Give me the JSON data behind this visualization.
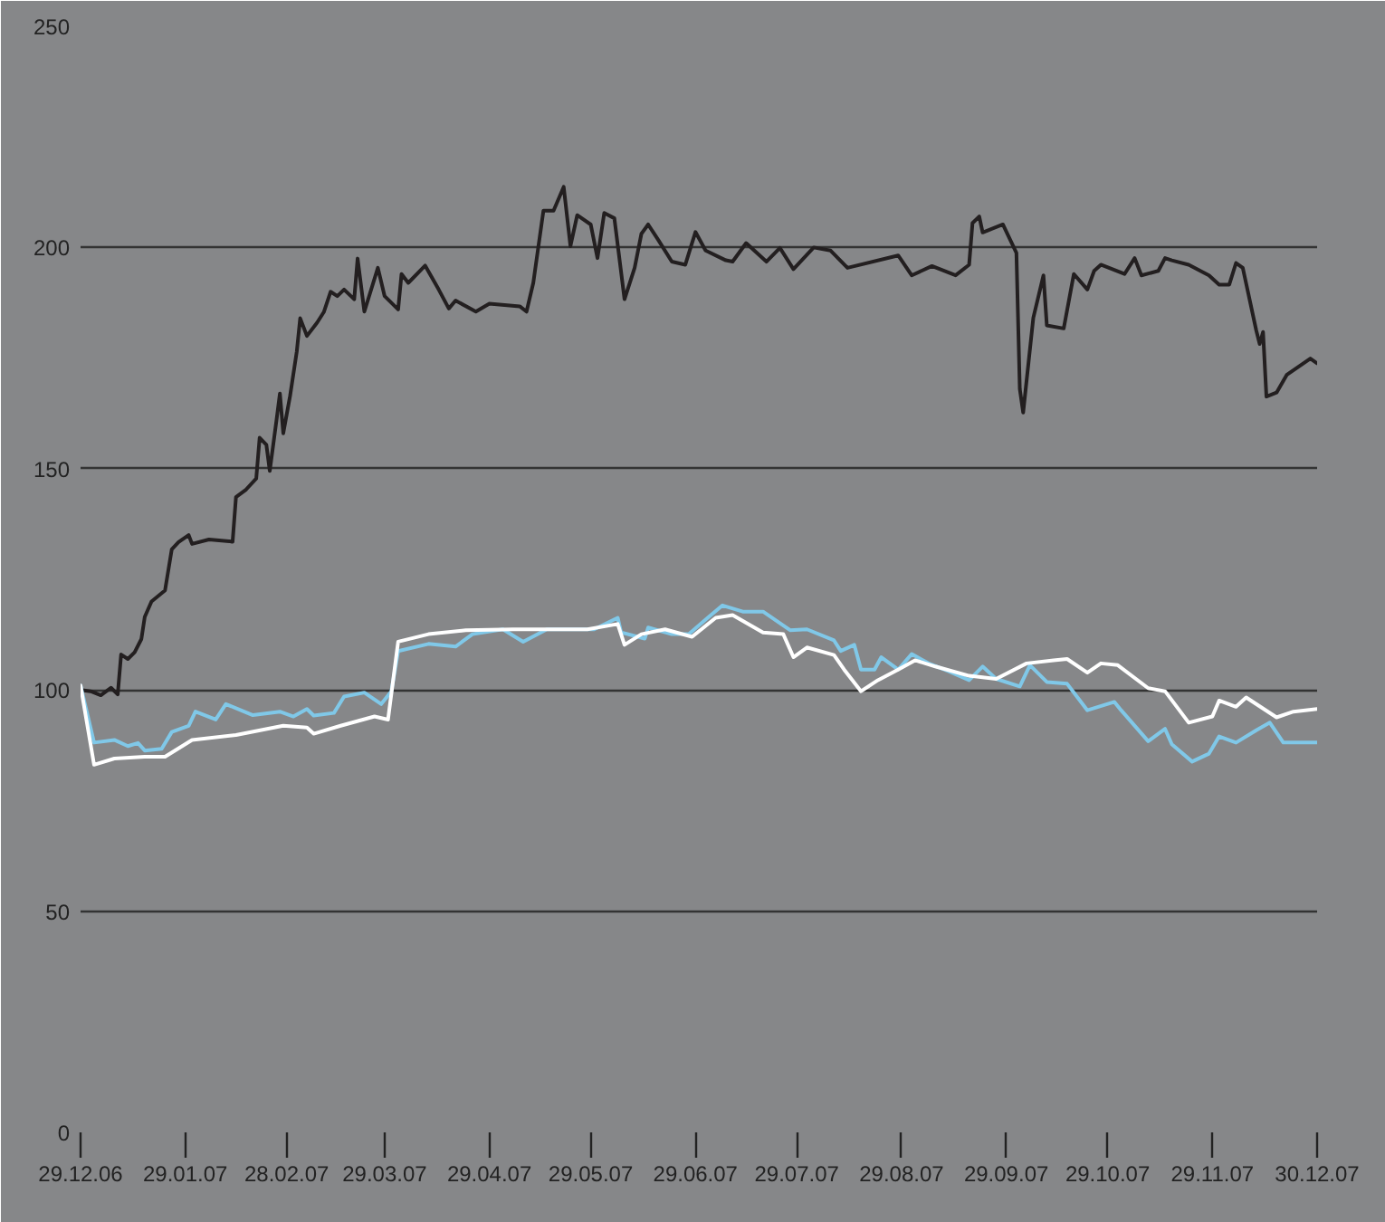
{
  "chart_data": {
    "type": "line",
    "xlim": [
      "2006-12-29",
      "2007-12-30"
    ],
    "ylim": [
      0,
      250
    ],
    "yticks": [
      0,
      50,
      100,
      150,
      200,
      250
    ],
    "xticks": [
      {
        "value": "2006-12-29",
        "label": "29.12.06"
      },
      {
        "value": "2007-01-29",
        "label": "29.01.07"
      },
      {
        "value": "2007-02-28",
        "label": "28.02.07"
      },
      {
        "value": "2007-03-29",
        "label": "29.03.07"
      },
      {
        "value": "2007-04-29",
        "label": "29.04.07"
      },
      {
        "value": "2007-05-29",
        "label": "29.05.07"
      },
      {
        "value": "2007-06-29",
        "label": "29.06.07"
      },
      {
        "value": "2007-07-29",
        "label": "29.07.07"
      },
      {
        "value": "2007-08-29",
        "label": "29.08.07"
      },
      {
        "value": "2007-09-29",
        "label": "29.09.07"
      },
      {
        "value": "2007-10-29",
        "label": "29.10.07"
      },
      {
        "value": "2007-11-29",
        "label": "29.11.07"
      },
      {
        "value": "2007-12-30",
        "label": "30.12.07"
      }
    ],
    "grid": "y",
    "marker": "none",
    "line_style": "solid",
    "series": [
      {
        "color": "#231f20",
        "x": [
          "2006-12-29",
          "2007-01-01",
          "2007-01-04",
          "2007-01-07",
          "2007-01-09",
          "2007-01-10",
          "2007-01-12",
          "2007-01-14",
          "2007-01-16",
          "2007-01-17",
          "2007-01-19",
          "2007-01-23",
          "2007-01-25",
          "2007-01-27",
          "2007-01-30",
          "2007-01-31",
          "2007-02-05",
          "2007-02-12",
          "2007-02-13",
          "2007-02-16",
          "2007-02-19",
          "2007-02-20",
          "2007-02-22",
          "2007-02-23",
          "2007-02-25",
          "2007-02-26",
          "2007-02-27",
          "2007-03-01",
          "2007-03-03",
          "2007-03-04",
          "2007-03-06",
          "2007-03-09",
          "2007-03-11",
          "2007-03-13",
          "2007-03-15",
          "2007-03-17",
          "2007-03-20",
          "2007-03-21",
          "2007-03-23",
          "2007-03-27",
          "2007-03-29",
          "2007-04-02",
          "2007-04-03",
          "2007-04-05",
          "2007-04-10",
          "2007-04-14",
          "2007-04-17",
          "2007-04-19",
          "2007-04-25",
          "2007-04-29",
          "2007-05-08",
          "2007-05-10",
          "2007-05-12",
          "2007-05-15",
          "2007-05-18",
          "2007-05-21",
          "2007-05-23",
          "2007-05-25",
          "2007-05-29",
          "2007-05-31",
          "2007-06-02",
          "2007-06-05",
          "2007-06-08",
          "2007-06-11",
          "2007-06-13",
          "2007-06-15",
          "2007-06-18",
          "2007-06-22",
          "2007-06-26",
          "2007-06-29",
          "2007-07-02",
          "2007-07-08",
          "2007-07-10",
          "2007-07-14",
          "2007-07-20",
          "2007-07-24",
          "2007-07-28",
          "2007-08-03",
          "2007-08-08",
          "2007-08-13",
          "2007-08-28",
          "2007-09-01",
          "2007-09-07",
          "2007-09-14",
          "2007-09-18",
          "2007-09-19",
          "2007-09-21",
          "2007-09-22",
          "2007-09-28",
          "2007-10-02",
          "2007-10-03",
          "2007-10-04",
          "2007-10-07",
          "2007-10-10",
          "2007-10-11",
          "2007-10-16",
          "2007-10-19",
          "2007-10-23",
          "2007-10-25",
          "2007-10-27",
          "2007-11-03",
          "2007-11-06",
          "2007-11-08",
          "2007-11-13",
          "2007-11-15",
          "2007-11-17",
          "2007-11-22",
          "2007-11-28",
          "2007-12-01",
          "2007-12-04",
          "2007-12-06",
          "2007-12-08",
          "2007-12-12",
          "2007-12-13",
          "2007-12-14",
          "2007-12-15",
          "2007-12-18",
          "2007-12-21",
          "2007-12-28",
          "2007-12-30"
        ],
        "values": [
          100,
          99.7,
          98.8,
          100.5,
          99,
          108,
          107,
          108.5,
          111.5,
          116.5,
          120,
          122.5,
          131.8,
          133.4,
          135,
          133,
          134,
          133.5,
          143.6,
          145.3,
          147.8,
          157,
          155.4,
          149.5,
          161,
          167,
          158,
          166.4,
          176.5,
          184,
          180,
          183,
          185.4,
          190,
          189,
          190.5,
          188.3,
          197.5,
          185.5,
          195.4,
          189,
          186,
          194,
          192,
          195.9,
          190.5,
          186.2,
          188,
          185.5,
          187.3,
          186.7,
          185.5,
          192,
          208.3,
          208.3,
          213.7,
          200.3,
          207.3,
          205.2,
          197.6,
          207.8,
          206.6,
          188.3,
          195.4,
          203.1,
          205.2,
          201.7,
          196.8,
          196.1,
          203.5,
          199.3,
          197.1,
          196.8,
          201,
          196.8,
          199.9,
          195.1,
          200,
          199.3,
          195.4,
          198.2,
          193.7,
          195.8,
          193.7,
          196.1,
          205.5,
          207,
          203.4,
          205.2,
          198.8,
          168,
          162.7,
          184.1,
          193.7,
          182.4,
          181.7,
          194,
          190.5,
          194.7,
          196.1,
          194,
          197.6,
          193.7,
          194.7,
          197.6,
          197.1,
          196.1,
          193.7,
          191.6,
          191.6,
          196.5,
          195.4,
          181.2,
          178.2,
          180.9,
          166.3,
          167.2,
          171.2,
          174.9,
          173.8
        ]
      },
      {
        "color": "#80c8e8",
        "x": [
          "2006-12-29",
          "2007-01-02",
          "2007-01-08",
          "2007-01-12",
          "2007-01-15",
          "2007-01-17",
          "2007-01-22",
          "2007-01-25",
          "2007-01-30",
          "2007-02-01",
          "2007-02-07",
          "2007-02-10",
          "2007-02-18",
          "2007-02-26",
          "2007-03-02",
          "2007-03-06",
          "2007-03-08",
          "2007-03-14",
          "2007-03-17",
          "2007-03-23",
          "2007-03-28",
          "2007-03-31",
          "2007-04-02",
          "2007-04-11",
          "2007-04-19",
          "2007-04-24",
          "2007-05-03",
          "2007-05-09",
          "2007-05-16",
          "2007-05-30",
          "2007-06-06",
          "2007-06-07",
          "2007-06-14",
          "2007-06-15",
          "2007-06-22",
          "2007-06-27",
          "2007-07-02",
          "2007-07-07",
          "2007-07-13",
          "2007-07-19",
          "2007-07-27",
          "2007-08-01",
          "2007-08-09",
          "2007-08-11",
          "2007-08-15",
          "2007-08-17",
          "2007-08-21",
          "2007-08-23",
          "2007-08-28",
          "2007-09-01",
          "2007-09-06",
          "2007-09-12",
          "2007-09-18",
          "2007-09-22",
          "2007-09-26",
          "2007-10-03",
          "2007-10-06",
          "2007-10-11",
          "2007-10-17",
          "2007-10-23",
          "2007-10-31",
          "2007-11-02",
          "2007-11-10",
          "2007-11-15",
          "2007-11-17",
          "2007-11-23",
          "2007-11-28",
          "2007-12-01",
          "2007-12-06",
          "2007-12-12",
          "2007-12-16",
          "2007-12-20",
          "2007-12-30"
        ],
        "values": [
          101,
          88.1,
          88.7,
          87.3,
          88,
          86.3,
          86.7,
          90.5,
          91.9,
          95.1,
          93.3,
          96.8,
          94.3,
          95.1,
          94,
          95.7,
          94.2,
          94.8,
          98.5,
          99.4,
          96.8,
          99.7,
          108.8,
          110.4,
          109.8,
          112.6,
          113.7,
          110.9,
          113.7,
          113.7,
          116.3,
          113,
          111.6,
          114.1,
          112.6,
          112.6,
          115.9,
          119.1,
          117.7,
          117.7,
          113.5,
          113.7,
          111.2,
          108.8,
          110.2,
          104.6,
          104.6,
          107.4,
          104.6,
          108.1,
          106,
          104.2,
          102.2,
          105.3,
          102.5,
          100.8,
          105.6,
          101.8,
          101.4,
          95.4,
          97.3,
          95.4,
          88.4,
          91.2,
          87.7,
          83.8,
          85.6,
          89.5,
          88.1,
          90.9,
          92.6,
          88.1,
          88.1
        ]
      },
      {
        "color": "#ffffff",
        "x": [
          "2006-12-29",
          "2007-01-02",
          "2007-01-08",
          "2007-01-17",
          "2007-01-23",
          "2007-01-31",
          "2007-02-13",
          "2007-02-27",
          "2007-03-06",
          "2007-03-08",
          "2007-03-16",
          "2007-03-26",
          "2007-03-30",
          "2007-04-02",
          "2007-04-11",
          "2007-04-22",
          "2007-05-06",
          "2007-05-28",
          "2007-06-06",
          "2007-06-08",
          "2007-06-13",
          "2007-06-20",
          "2007-06-28",
          "2007-07-05",
          "2007-07-10",
          "2007-07-19",
          "2007-07-25",
          "2007-07-28",
          "2007-08-01",
          "2007-08-09",
          "2007-08-12",
          "2007-08-17",
          "2007-08-22",
          "2007-08-28",
          "2007-09-02",
          "2007-09-08",
          "2007-09-18",
          "2007-09-26",
          "2007-10-05",
          "2007-10-13",
          "2007-10-17",
          "2007-10-23",
          "2007-10-27",
          "2007-11-01",
          "2007-11-10",
          "2007-11-15",
          "2007-11-22",
          "2007-11-29",
          "2007-12-01",
          "2007-12-06",
          "2007-12-09",
          "2007-12-18",
          "2007-12-23",
          "2007-12-30"
        ],
        "values": [
          101,
          83.1,
          84.5,
          84.9,
          84.9,
          88.7,
          89.8,
          91.9,
          91.5,
          90.1,
          91.9,
          94,
          93.3,
          110.9,
          112.6,
          113.5,
          113.7,
          113.7,
          114.9,
          110.2,
          112.6,
          113.7,
          112,
          116.3,
          116.9,
          113,
          112.6,
          107.4,
          109.6,
          107.9,
          104.6,
          99.7,
          102.2,
          104.6,
          106.7,
          105.3,
          103.2,
          102.5,
          106,
          106.7,
          107,
          103.9,
          106,
          105.6,
          100.4,
          99.7,
          92.6,
          94,
          97.6,
          96.2,
          98.3,
          93.8,
          95.1,
          95.7
        ]
      }
    ]
  }
}
